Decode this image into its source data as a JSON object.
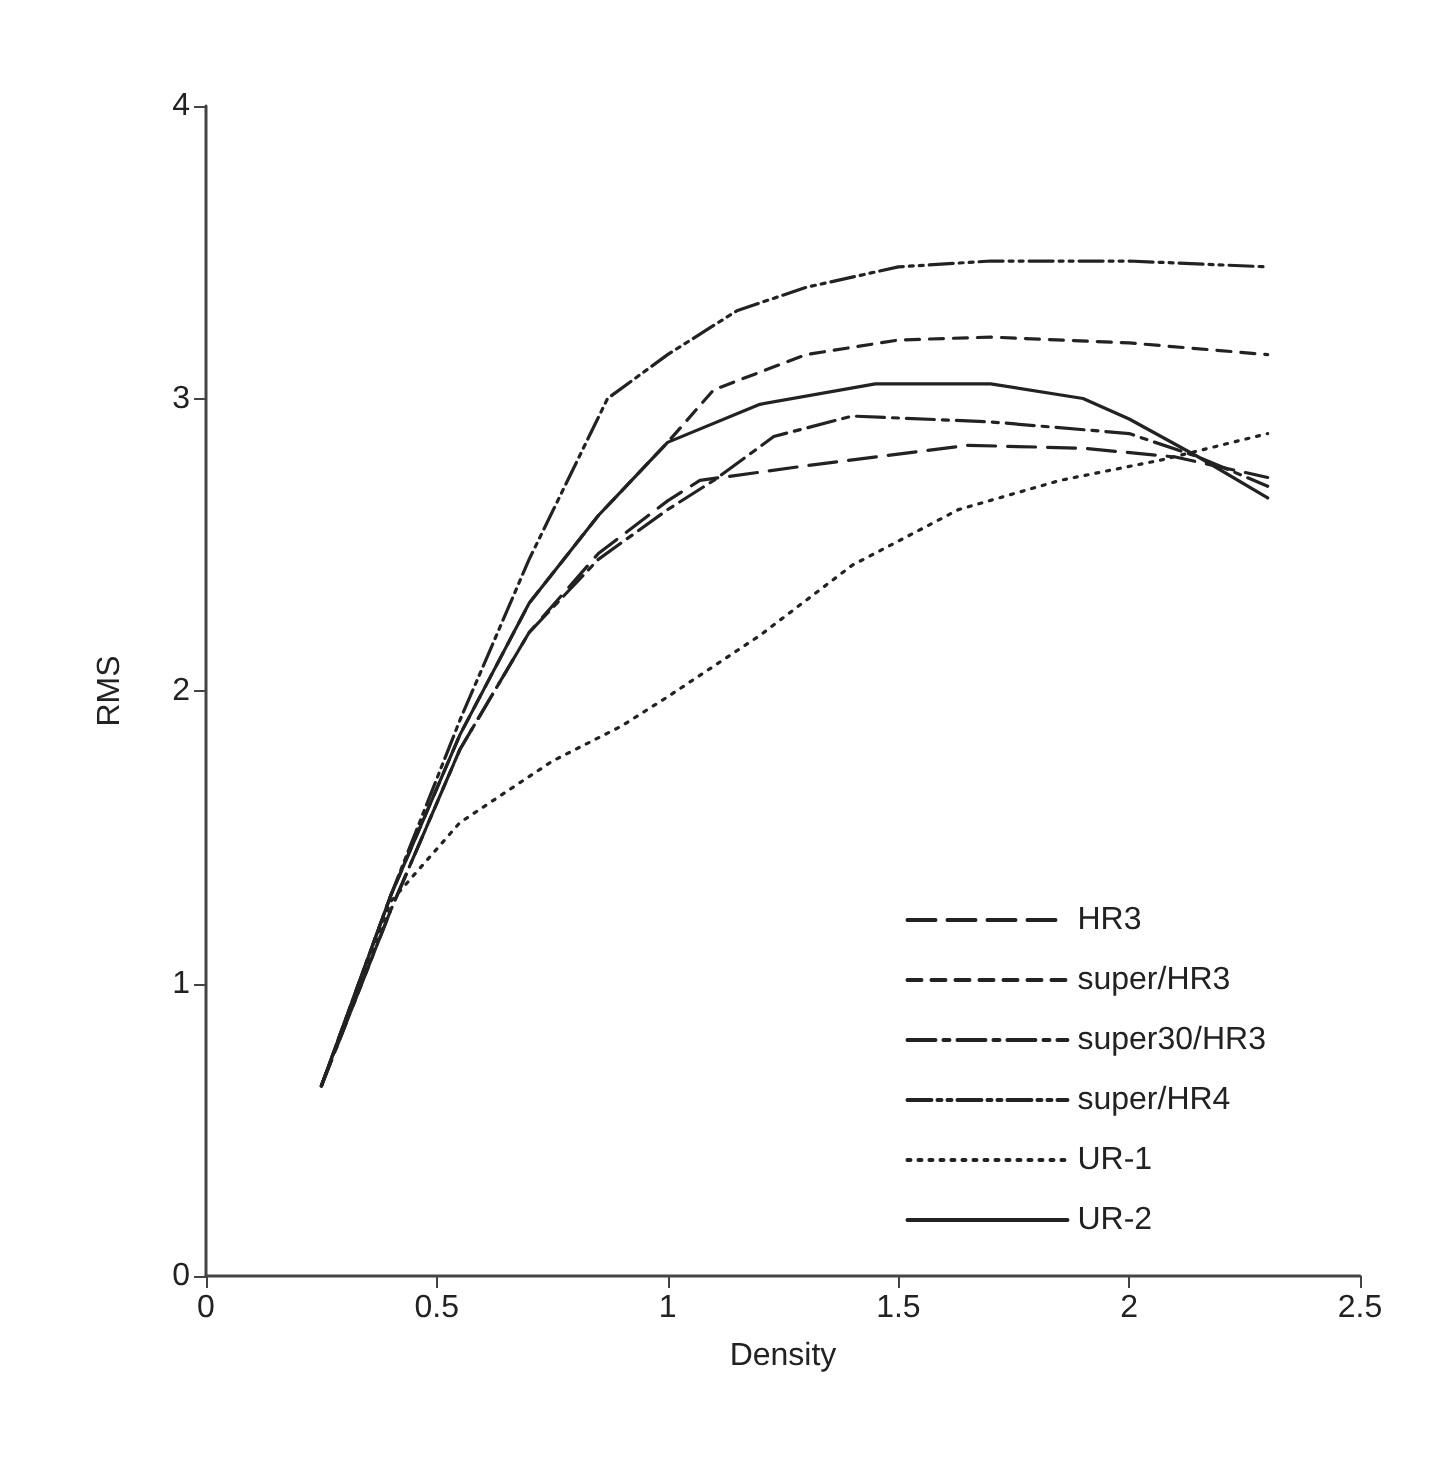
{
  "chart_data": {
    "type": "line",
    "xlabel": "Density",
    "ylabel": "RMS",
    "xlim": [
      0,
      2.5
    ],
    "xticks": [
      0,
      0.5,
      1,
      1.5,
      2,
      2.5
    ],
    "ylim": [
      0,
      4
    ],
    "yticks": [
      0,
      1,
      2,
      3,
      4
    ],
    "grid": false,
    "legend": "bottom right",
    "marker": "none",
    "series": [
      {
        "name": "HR3",
        "color": "#222222",
        "line_style": "dashed",
        "x": [
          0.25,
          0.4,
          0.55,
          0.7,
          0.85,
          1.0,
          1.07,
          1.3,
          1.65,
          1.9,
          2.1,
          2.3
        ],
        "values": [
          0.65,
          1.25,
          1.8,
          2.2,
          2.47,
          2.65,
          2.72,
          2.77,
          2.84,
          2.83,
          2.8,
          2.73
        ]
      },
      {
        "name": "super/HR3",
        "color": "#222222",
        "line_style": "dashed",
        "x": [
          0.25,
          0.4,
          0.55,
          0.7,
          0.85,
          1.0,
          1.1,
          1.3,
          1.5,
          1.7,
          2.0,
          2.3
        ],
        "values": [
          0.65,
          1.3,
          1.85,
          2.3,
          2.6,
          2.85,
          3.03,
          3.15,
          3.2,
          3.21,
          3.19,
          3.15
        ]
      },
      {
        "name": "super30/HR3",
        "color": "#222222",
        "line_style": "dashed",
        "x": [
          0.25,
          0.4,
          0.55,
          0.7,
          0.85,
          1.0,
          1.1,
          1.23,
          1.4,
          1.7,
          2.0,
          2.15,
          2.3
        ],
        "values": [
          0.65,
          1.25,
          1.8,
          2.2,
          2.45,
          2.62,
          2.72,
          2.87,
          2.94,
          2.92,
          2.88,
          2.8,
          2.7
        ]
      },
      {
        "name": "super/HR4",
        "color": "#222222",
        "line_style": "dashed",
        "x": [
          0.25,
          0.4,
          0.55,
          0.7,
          0.87,
          1.0,
          1.15,
          1.3,
          1.5,
          1.7,
          2.0,
          2.3
        ],
        "values": [
          0.65,
          1.3,
          1.9,
          2.45,
          3.0,
          3.15,
          3.3,
          3.38,
          3.45,
          3.47,
          3.47,
          3.45
        ]
      },
      {
        "name": "UR-1",
        "color": "#222222",
        "line_style": "dotted",
        "x": [
          0.25,
          0.4,
          0.55,
          0.75,
          0.9,
          1.0,
          1.2,
          1.4,
          1.63,
          1.85,
          2.07,
          2.3
        ],
        "values": [
          0.65,
          1.28,
          1.55,
          1.76,
          1.88,
          1.98,
          2.19,
          2.43,
          2.62,
          2.72,
          2.79,
          2.88
        ]
      },
      {
        "name": "UR-2",
        "color": "#222222",
        "line_style": "solid",
        "x": [
          0.25,
          0.4,
          0.55,
          0.7,
          0.85,
          1.0,
          1.2,
          1.45,
          1.7,
          1.9,
          2.0,
          2.15,
          2.3
        ],
        "values": [
          0.65,
          1.3,
          1.85,
          2.3,
          2.6,
          2.85,
          2.98,
          3.05,
          3.05,
          3.0,
          2.93,
          2.8,
          2.66
        ]
      }
    ]
  }
}
